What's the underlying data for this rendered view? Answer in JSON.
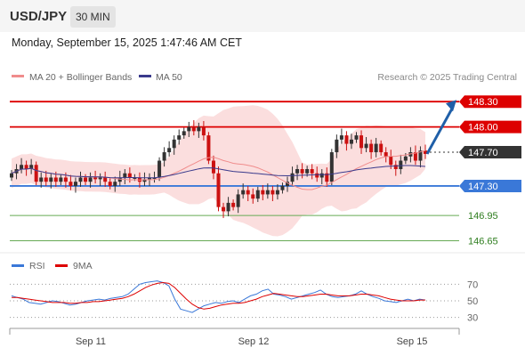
{
  "header": {
    "symbol": "USD/JPY",
    "timeframe": "30 MIN",
    "datetime": "Monday, September 15, 2025 1:47:46 AM CET"
  },
  "legend": {
    "ma20": "MA 20 + Bollinger Bands",
    "ma50": "MA 50",
    "credit": "Research © 2025 Trading Central",
    "rsi": "RSI",
    "rsi_ma": "9MA"
  },
  "colors": {
    "resistance": "#dd0000",
    "support": "#3a78d8",
    "target": "#66aa55",
    "current": "#333333",
    "bollinger": "#f8c8c8",
    "ma20": "#f08c8c",
    "ma50": "#3a3a8c",
    "bull": "#333333",
    "bear": "#cc1111",
    "arrow": "#1f5fa8"
  },
  "chart_data": [
    {
      "type": "candlestick",
      "title": "USD/JPY",
      "x_ticks": [
        "Sep 11",
        "Sep 12",
        "Sep 15"
      ],
      "ylim": [
        146.55,
        148.45
      ],
      "levels": [
        {
          "value": 148.3,
          "label": "148.30",
          "role": "resistance"
        },
        {
          "value": 148.0,
          "label": "148.00",
          "role": "resistance"
        },
        {
          "value": 147.7,
          "label": "147.70",
          "role": "current"
        },
        {
          "value": 147.3,
          "label": "147.30",
          "role": "support"
        },
        {
          "value": 146.95,
          "label": "146.95",
          "role": "target"
        },
        {
          "value": 146.65,
          "label": "146.65",
          "role": "target"
        }
      ],
      "close": [
        147.45,
        147.5,
        147.55,
        147.5,
        147.55,
        147.35,
        147.4,
        147.35,
        147.4,
        147.35,
        147.4,
        147.35,
        147.3,
        147.35,
        147.4,
        147.35,
        147.4,
        147.38,
        147.4,
        147.35,
        147.3,
        147.35,
        147.4,
        147.45,
        147.4,
        147.4,
        147.35,
        147.38,
        147.4,
        147.4,
        147.6,
        147.7,
        147.75,
        147.85,
        147.9,
        147.95,
        148.0,
        147.95,
        148.0,
        147.9,
        147.6,
        147.45,
        147.05,
        147.0,
        147.1,
        147.05,
        147.2,
        147.25,
        147.2,
        147.15,
        147.25,
        147.2,
        147.25,
        147.2,
        147.25,
        147.3,
        147.35,
        147.45,
        147.5,
        147.45,
        147.5,
        147.45,
        147.4,
        147.45,
        147.35,
        147.7,
        147.85,
        147.9,
        147.8,
        147.85,
        147.9,
        147.75,
        147.8,
        147.7,
        147.8,
        147.7,
        147.65,
        147.55,
        147.5,
        147.6,
        147.65,
        147.7,
        147.6,
        147.72,
        147.68
      ],
      "open": [
        147.4,
        147.45,
        147.5,
        147.55,
        147.5,
        147.55,
        147.35,
        147.4,
        147.35,
        147.4,
        147.35,
        147.4,
        147.35,
        147.3,
        147.35,
        147.4,
        147.35,
        147.4,
        147.38,
        147.4,
        147.35,
        147.3,
        147.35,
        147.4,
        147.45,
        147.4,
        147.4,
        147.35,
        147.38,
        147.4,
        147.4,
        147.6,
        147.7,
        147.75,
        147.85,
        147.9,
        147.95,
        148.0,
        147.95,
        148.0,
        147.9,
        147.6,
        147.45,
        147.05,
        147.0,
        147.1,
        147.05,
        147.2,
        147.25,
        147.2,
        147.15,
        147.25,
        147.2,
        147.25,
        147.2,
        147.25,
        147.3,
        147.35,
        147.45,
        147.5,
        147.45,
        147.5,
        147.45,
        147.4,
        147.45,
        147.35,
        147.7,
        147.85,
        147.9,
        147.8,
        147.85,
        147.9,
        147.75,
        147.8,
        147.7,
        147.8,
        147.7,
        147.65,
        147.55,
        147.5,
        147.6,
        147.65,
        147.7,
        147.6,
        147.72
      ],
      "indicators": {
        "ma20_last": 147.58,
        "ma50_last": 147.45,
        "bollinger_width": 0.35
      }
    },
    {
      "type": "line",
      "title": "RSI",
      "ylim": [
        20,
        80
      ],
      "y_ticks": [
        30,
        50,
        70
      ],
      "series": [
        {
          "name": "RSI",
          "values": [
            56,
            54,
            52,
            48,
            47,
            46,
            48,
            50,
            49,
            47,
            45,
            46,
            48,
            50,
            51,
            52,
            51,
            53,
            54,
            55,
            58,
            64,
            70,
            72,
            73,
            74,
            72,
            68,
            52,
            40,
            38,
            36,
            40,
            44,
            46,
            48,
            47,
            49,
            50,
            48,
            52,
            56,
            58,
            62,
            64,
            58,
            57,
            55,
            52,
            54,
            56,
            58,
            60,
            63,
            58,
            55,
            54,
            55,
            56,
            58,
            62,
            58,
            55,
            53,
            50,
            49,
            48,
            50,
            52,
            50,
            52,
            51
          ],
          "color": "#3a78d8"
        },
        {
          "name": "9MA",
          "values": [
            54,
            54,
            53,
            52,
            51,
            50,
            49,
            48,
            48,
            48,
            47,
            47,
            48,
            48,
            49,
            49,
            50,
            51,
            52,
            53,
            55,
            58,
            62,
            66,
            69,
            71,
            72,
            71,
            66,
            59,
            52,
            46,
            42,
            40,
            41,
            43,
            45,
            46,
            47,
            47,
            48,
            50,
            52,
            55,
            57,
            59,
            58,
            57,
            56,
            55,
            55,
            56,
            57,
            58,
            58,
            57,
            56,
            56,
            56,
            57,
            58,
            58,
            57,
            56,
            54,
            52,
            51,
            50,
            50,
            50,
            51,
            51
          ],
          "color": "#dd0000"
        }
      ]
    }
  ]
}
